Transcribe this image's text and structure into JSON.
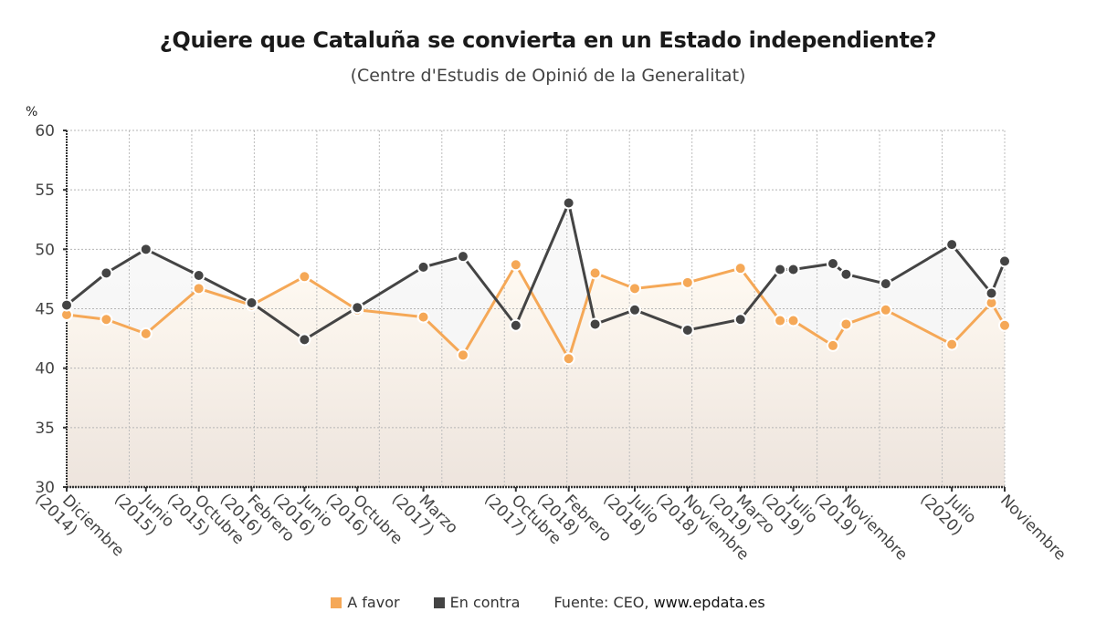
{
  "header": {
    "title": "¿Quiere que Cataluña se convierta en un Estado independiente?",
    "subtitle": "(Centre d'Estudis de Opinió de la Generalitat)"
  },
  "legend": {
    "items": [
      {
        "label": "A favor",
        "color": "#f5a857"
      },
      {
        "label": "En contra",
        "color": "#444444"
      }
    ],
    "source_prefix": "Fuente: CEO, ",
    "source_link": "www.epdata.es"
  },
  "chart_data": {
    "type": "line",
    "title": "¿Quiere que Cataluña se convierta en un Estado independiente?",
    "subtitle": "(Centre d'Estudis de Opinió de la Generalitat)",
    "ylabel": "%",
    "xlabel": "",
    "ylim": [
      30,
      60
    ],
    "yticks": [
      30,
      35,
      40,
      45,
      50,
      55,
      60
    ],
    "x_unit": "months since Diciembre 2014",
    "xlim": [
      0,
      71
    ],
    "grid": true,
    "legend_position": "bottom",
    "x_ticks": [
      {
        "m": 0,
        "label": [
          "Diciembre",
          "(2014)"
        ]
      },
      {
        "m": 6,
        "label": [
          "Junio",
          "(2015)"
        ]
      },
      {
        "m": 10,
        "label": [
          "Octubre",
          "(2015)"
        ]
      },
      {
        "m": 14,
        "label": [
          "Febrero",
          "(2016)"
        ]
      },
      {
        "m": 18,
        "label": [
          "Junio",
          "(2016)"
        ]
      },
      {
        "m": 22,
        "label": [
          "Octubre",
          "(2016)"
        ]
      },
      {
        "m": 27,
        "label": [
          "Marzo",
          "(2017)"
        ]
      },
      {
        "m": 34,
        "label": [
          "Octubre",
          "(2017)"
        ]
      },
      {
        "m": 38,
        "label": [
          "Febrero",
          "(2018)"
        ]
      },
      {
        "m": 43,
        "label": [
          "Julio",
          "(2018)"
        ]
      },
      {
        "m": 47,
        "label": [
          "Noviembre",
          "(2018)"
        ]
      },
      {
        "m": 51,
        "label": [
          "Marzo",
          "(2019)"
        ]
      },
      {
        "m": 55,
        "label": [
          "Julio",
          "(2019)"
        ]
      },
      {
        "m": 59,
        "label": [
          "Noviembre",
          "(2019)"
        ]
      },
      {
        "m": 67,
        "label": [
          "Julio",
          "(2020)"
        ]
      },
      {
        "m": 71,
        "label": [
          "Noviembre"
        ]
      }
    ],
    "x": [
      0,
      3,
      6,
      10,
      14,
      18,
      22,
      27,
      30,
      34,
      38,
      40,
      43,
      47,
      51,
      54,
      55,
      58,
      59,
      62,
      67,
      70,
      71
    ],
    "series": [
      {
        "name": "A favor",
        "color": "#f5a857",
        "values": [
          44.5,
          44.1,
          42.9,
          46.7,
          45.3,
          47.7,
          44.9,
          44.3,
          41.1,
          48.7,
          40.8,
          48.0,
          46.7,
          47.2,
          48.4,
          44.0,
          44.0,
          41.9,
          43.7,
          44.9,
          42.0,
          45.5,
          43.6
        ]
      },
      {
        "name": "En contra",
        "color": "#444444",
        "values": [
          45.3,
          48.0,
          50.0,
          47.8,
          45.5,
          42.4,
          45.1,
          48.5,
          49.4,
          43.6,
          53.9,
          43.7,
          44.9,
          43.2,
          44.1,
          48.3,
          48.3,
          48.8,
          47.9,
          47.1,
          50.4,
          46.3,
          49.0
        ]
      }
    ]
  }
}
